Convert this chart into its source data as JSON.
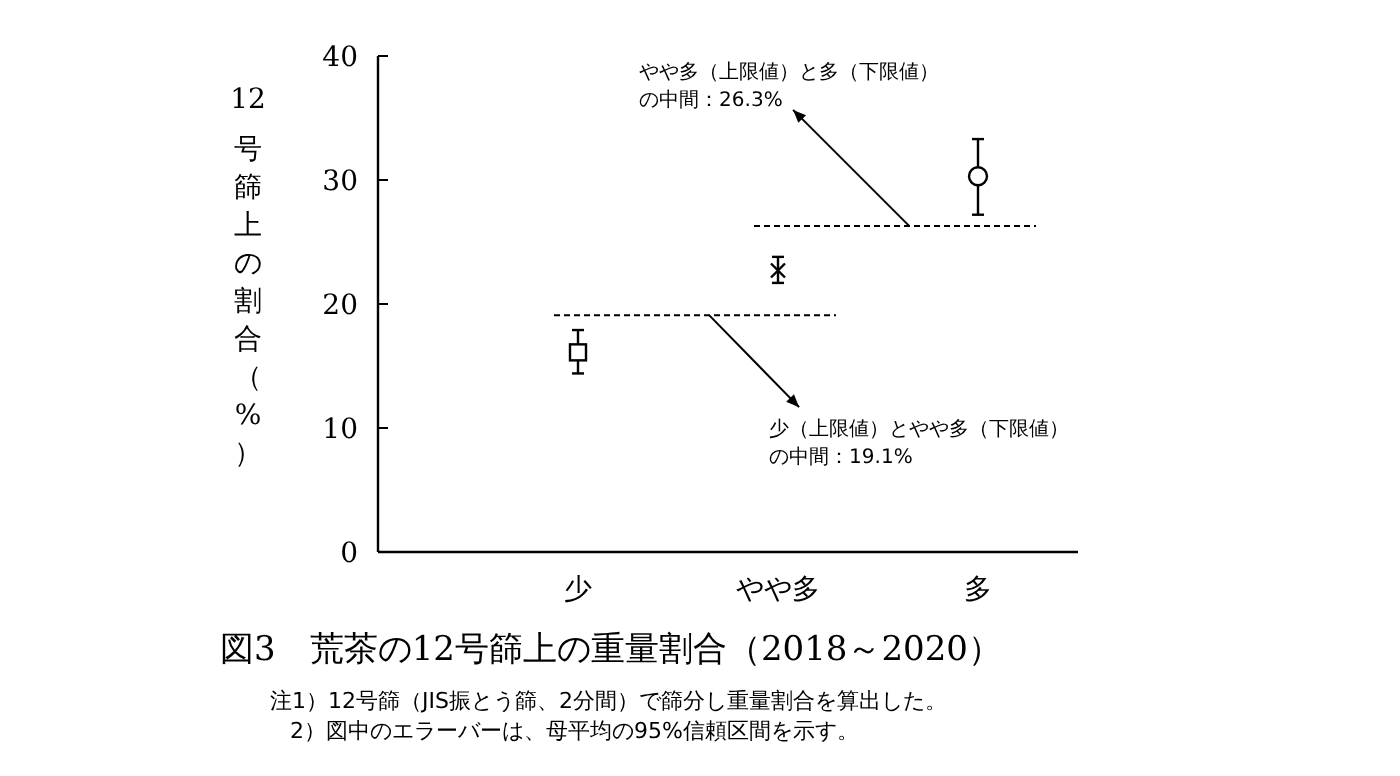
{
  "chart_data": {
    "type": "scatter",
    "title": "図3　荒茶の12号篩上の重量割合（2018～2020）",
    "ylabel": "12号篩上の割合（%）",
    "categories": [
      "少",
      "やや多",
      "多"
    ],
    "ylim": [
      0,
      40
    ],
    "yticks": [
      0,
      10,
      20,
      30,
      40
    ],
    "grid": false,
    "series": [
      {
        "color": "#000000",
        "marker": "square",
        "values": [
          16.1,
          null,
          null
        ],
        "errors": [
          [
            14.4,
            17.9
          ],
          null,
          null
        ]
      },
      {
        "color": "#000000",
        "marker": "cross",
        "values": [
          null,
          22.7,
          null
        ],
        "errors": [
          null,
          [
            21.7,
            23.8
          ],
          null
        ]
      },
      {
        "color": "#000000",
        "marker": "circle",
        "values": [
          null,
          null,
          30.3
        ],
        "errors": [
          null,
          null,
          [
            27.2,
            33.3
          ]
        ]
      }
    ],
    "ref_lines": [
      {
        "axis": "y",
        "value": 19.1,
        "line_style": "dashed",
        "label": [
          "少（上限値）とやや多（下限値）",
          "の中間：19.1%"
        ]
      },
      {
        "axis": "y",
        "value": 26.3,
        "line_style": "dashed",
        "label": [
          "やや多（上限値）と多（下限値）",
          "の中間：26.3%"
        ]
      }
    ],
    "annotations": [
      "注1）12号篩（JIS振とう篩、2分間）で篩分し重量割合を算出した。",
      "2）図中のエラーバーは、母平均の95%信頼区間を示す。"
    ]
  }
}
